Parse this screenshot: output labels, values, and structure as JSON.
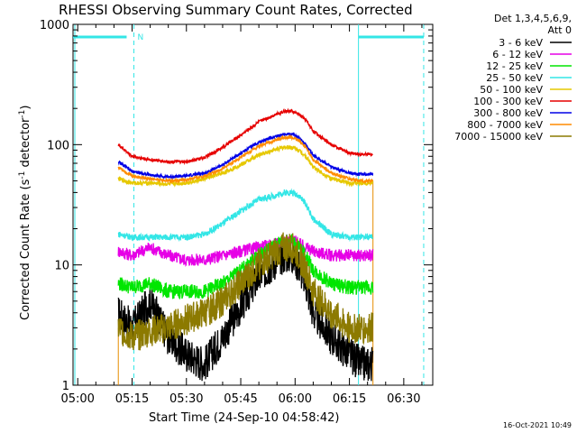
{
  "chart_data": {
    "type": "line",
    "title": "RHESSI Observing Summary Count Rates, Corrected",
    "xlabel": "Start Time (24-Sep-10 04:58:42)",
    "ylabel_main": "Corrected Count Rate (s",
    "ylabel_exp1": "-1",
    "ylabel_mid": " detector",
    "ylabel_exp2": "-1",
    "ylabel_end": ")",
    "yscale": "log",
    "ylim": [
      1,
      1000
    ],
    "xlim": [
      "04:58:42",
      "06:38:00"
    ],
    "x_ticks": [
      "05:00",
      "05:15",
      "05:30",
      "05:45",
      "06:00",
      "06:15",
      "06:30"
    ],
    "x_tick_minutes": [
      60,
      75,
      90,
      105,
      120,
      135,
      150
    ],
    "x_range_minutes": [
      58.7,
      158.0
    ],
    "y_ticks": [
      "1",
      "10",
      "100",
      "1000"
    ],
    "y_tick_values": [
      1,
      10,
      100,
      1000
    ],
    "legend_header": [
      "Det 1,3,4,5,6,9,",
      "Att 0"
    ],
    "attenuator_label": "N",
    "series": [
      {
        "name": "3 - 6 keV",
        "color": "#000000"
      },
      {
        "name": "6 - 12 keV",
        "color": "#e600e6"
      },
      {
        "name": "12 - 25 keV",
        "color": "#00e600"
      },
      {
        "name": "25 - 50 keV",
        "color": "#33e6e6"
      },
      {
        "name": "50 - 100 keV",
        "color": "#e6c800"
      },
      {
        "name": "100 - 300 keV",
        "color": "#e60000"
      },
      {
        "name": "300 - 800 keV",
        "color": "#0000e6"
      },
      {
        "name": "800 - 7000 keV",
        "color": "#ff8c00"
      },
      {
        "name": "7000 - 15000 keV",
        "color": "#8c7a00"
      }
    ],
    "data_start_minute": 71.2,
    "data_end_minute": 141.5,
    "time_grid_minutes": [
      71.2,
      75,
      80,
      85,
      90,
      95,
      100,
      105,
      110,
      115,
      117,
      119,
      120,
      121,
      123,
      125,
      130,
      135,
      138,
      141.5
    ],
    "series_values": {
      "3 - 6 keV": [
        4,
        3,
        5,
        2.5,
        1.8,
        1.5,
        2.5,
        4.5,
        8,
        11,
        12,
        12,
        11,
        10,
        7,
        4,
        2.5,
        1.8,
        1.5,
        1.5
      ],
      "6 - 12 keV": [
        13,
        12,
        14,
        12,
        11,
        11,
        12,
        13,
        14,
        15,
        16,
        16,
        16,
        15,
        14,
        13,
        12,
        12,
        12,
        12
      ],
      "12 - 25 keV": [
        7,
        6.5,
        7,
        6,
        6,
        6,
        7,
        9,
        12,
        15,
        16,
        16,
        15,
        14,
        12,
        9,
        7,
        6.5,
        6.5,
        6.5
      ],
      "25 - 50 keV": [
        18,
        17,
        17,
        17,
        17,
        18,
        22,
        28,
        35,
        38,
        40,
        40,
        39,
        38,
        32,
        24,
        18,
        17,
        17,
        17
      ],
      "50 - 100 keV": [
        52,
        48,
        48,
        47,
        48,
        52,
        58,
        68,
        82,
        92,
        95,
        95,
        93,
        90,
        80,
        65,
        52,
        48,
        48,
        48
      ],
      "100 - 300 keV": [
        100,
        80,
        75,
        72,
        72,
        78,
        95,
        120,
        155,
        180,
        190,
        190,
        185,
        180,
        160,
        130,
        100,
        85,
        83,
        83
      ],
      "300 - 800 keV": [
        72,
        60,
        56,
        54,
        55,
        58,
        68,
        85,
        105,
        118,
        122,
        122,
        120,
        115,
        100,
        82,
        65,
        58,
        57,
        57
      ],
      "800 - 7000 keV": [
        65,
        55,
        52,
        50,
        51,
        55,
        63,
        78,
        97,
        110,
        115,
        115,
        112,
        108,
        95,
        75,
        58,
        52,
        50,
        50
      ],
      "7000 - 15000 keV": [
        3,
        2.5,
        2.8,
        3,
        3.5,
        4,
        5,
        7,
        10,
        13,
        14,
        14,
        13,
        12,
        9,
        6,
        4,
        3,
        3,
        3
      ]
    },
    "footer_stamp": "16-Oct-2021 10:49"
  }
}
